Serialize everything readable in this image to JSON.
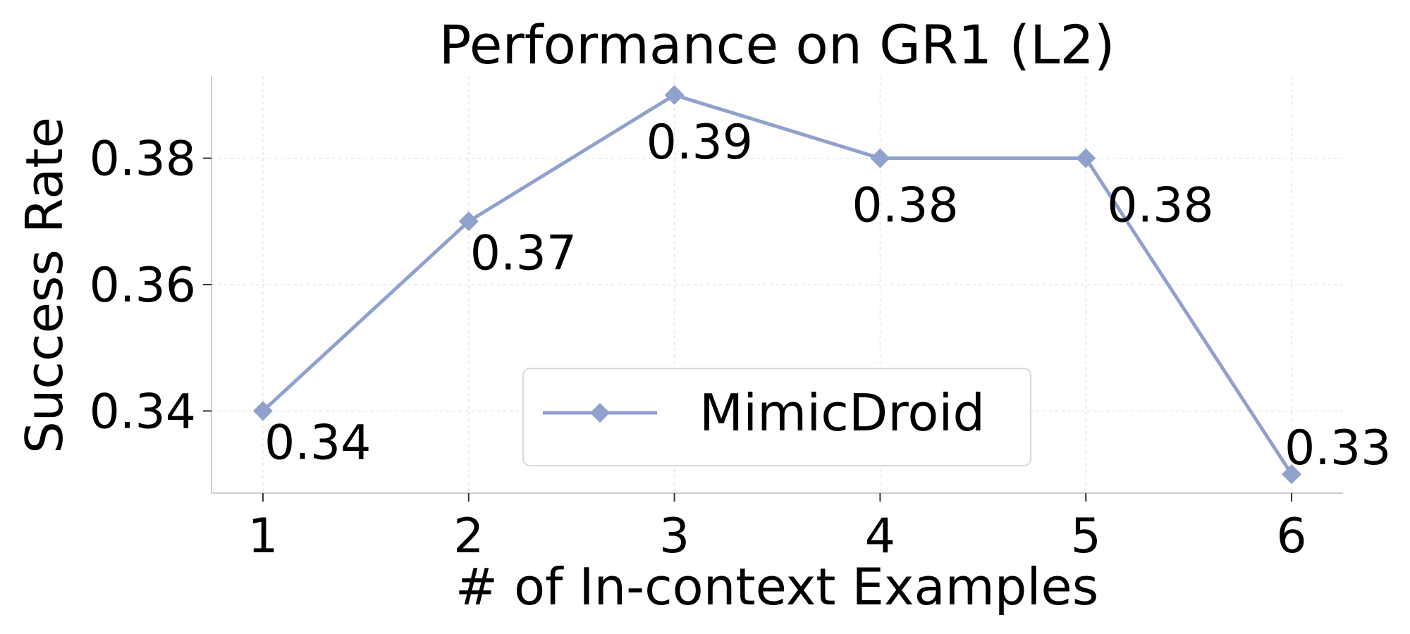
{
  "chart_data": {
    "type": "line",
    "title": "Performance on GR1 (L2)",
    "xlabel": "# of In-context Examples",
    "ylabel": "Success Rate",
    "x": [
      1,
      2,
      3,
      4,
      5,
      6
    ],
    "xticks": [
      "1",
      "2",
      "3",
      "4",
      "5",
      "6"
    ],
    "yticks": [
      "0.34",
      "0.36",
      "0.38"
    ],
    "ytick_values": [
      0.34,
      0.36,
      0.38
    ],
    "xlim": [
      0.75,
      6.25
    ],
    "ylim": [
      0.327,
      0.393
    ],
    "grid": true,
    "legend_position": "bottom-center",
    "series": [
      {
        "name": "MimicDroid",
        "color": "#8fa1cc",
        "marker": "diamond",
        "values": [
          0.34,
          0.37,
          0.39,
          0.38,
          0.38,
          0.33
        ],
        "labels": [
          "0.34",
          "0.37",
          "0.39",
          "0.38",
          "0.38",
          "0.33"
        ]
      }
    ]
  }
}
